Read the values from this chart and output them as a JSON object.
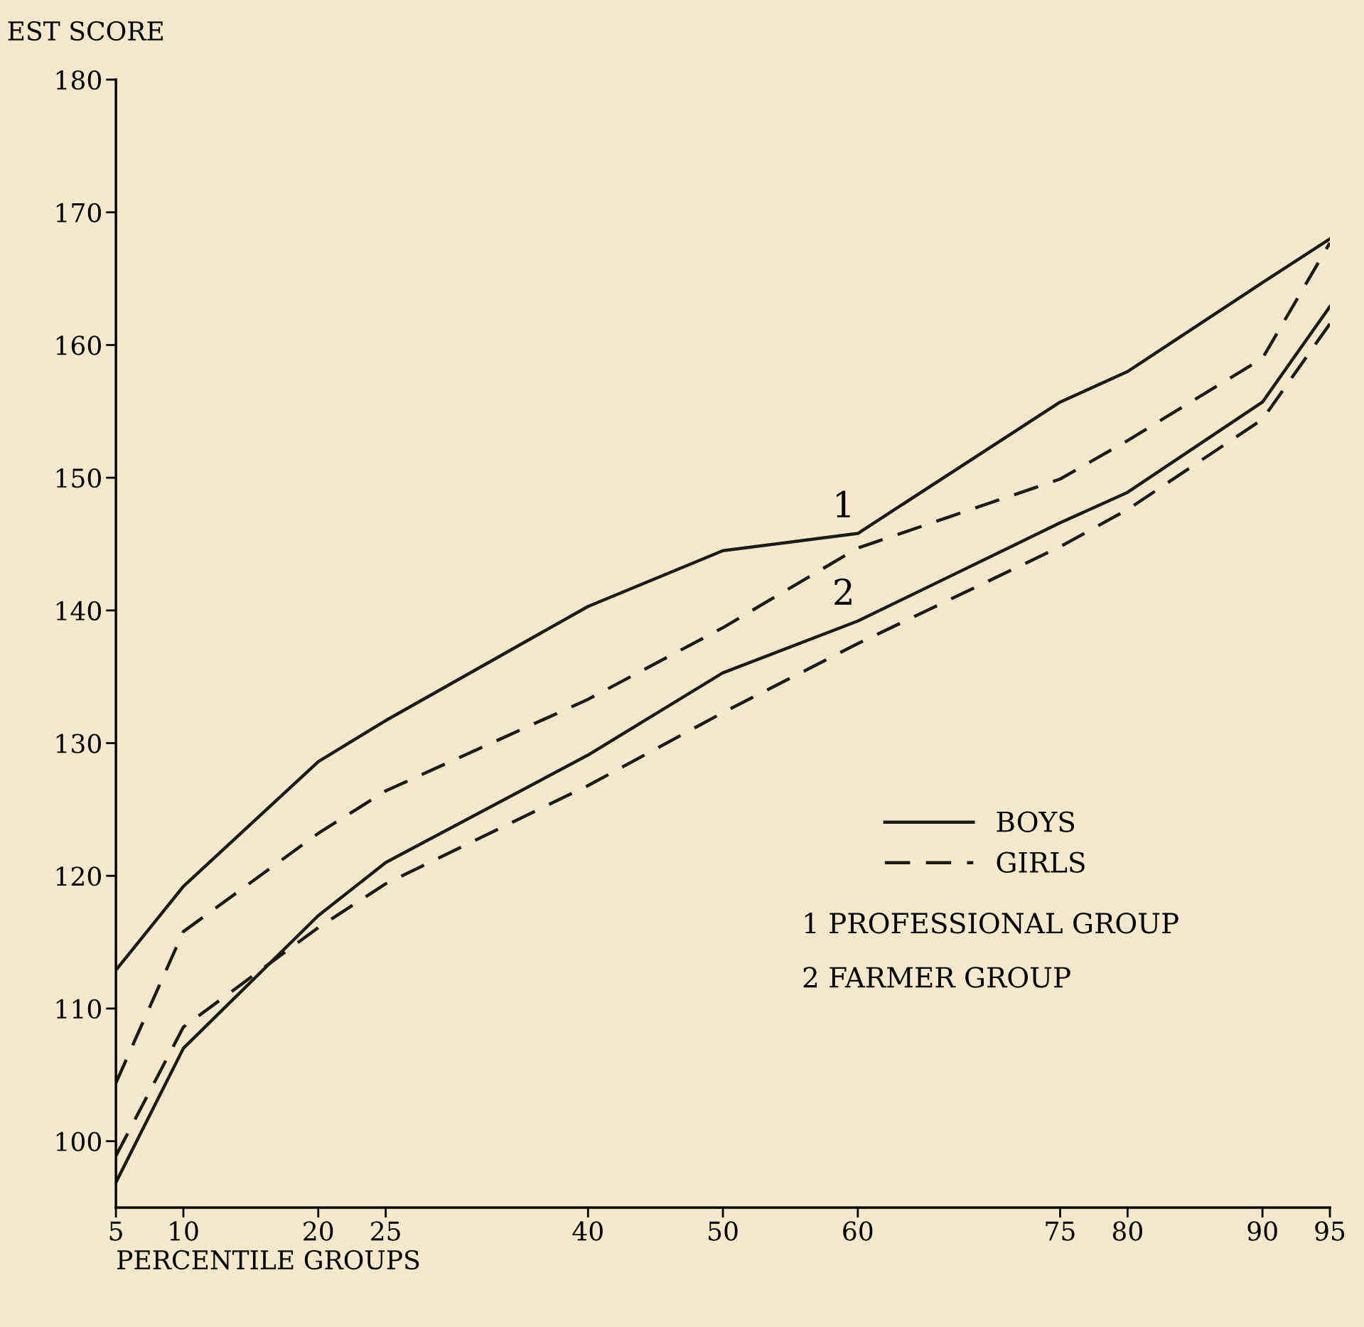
{
  "chart_data": {
    "type": "line",
    "ylabel": "EST SCORE",
    "xlabel": "PERCENTILE GROUPS",
    "x": [
      5,
      10,
      20,
      25,
      40,
      50,
      60,
      75,
      80,
      90,
      95
    ],
    "series": [
      {
        "name": "BOYS",
        "color": "#1a1a1a",
        "line_style": "solid",
        "values": [
          112.9,
          119.2,
          128.6,
          131.7,
          140.3,
          144.5,
          145.8,
          155.7,
          158,
          164.7,
          168
        ]
      },
      {
        "name": "GIRLS",
        "color": "#1a1a1a",
        "line_style": "dashed",
        "values": [
          104.4,
          115.8,
          123.2,
          126.4,
          133.3,
          138.7,
          144.7,
          149.9,
          152.8,
          159,
          167.7
        ]
      },
      {
        "color": "#1a1a1a",
        "line_style": "solid",
        "values": [
          96.9,
          107,
          117,
          121,
          129.1,
          135.3,
          139.2,
          146.6,
          148.9,
          155.7,
          162.9
        ]
      },
      {
        "color": "#1a1a1a",
        "line_style": "dashed",
        "values": [
          98.9,
          108.6,
          116.1,
          119.4,
          126.8,
          132.3,
          137.5,
          144.8,
          147.6,
          154.4,
          161.6
        ]
      }
    ],
    "xlim": [
      5,
      95
    ],
    "xticks": [
      5,
      10,
      20,
      25,
      40,
      50,
      60,
      75,
      80,
      90,
      95
    ],
    "ylim": [
      95,
      180
    ],
    "yticks": [
      100,
      110,
      120,
      130,
      140,
      150,
      160,
      170,
      180
    ],
    "annotations": [
      {
        "text": "1",
        "x": 60,
        "y": 145.8
      },
      {
        "text": "2",
        "x": 60,
        "y": 139.2
      },
      "1 PROFESSIONAL GROUP",
      "2 FARMER GROUP"
    ],
    "legend": "lower right",
    "grid": false,
    "marker": "none"
  }
}
